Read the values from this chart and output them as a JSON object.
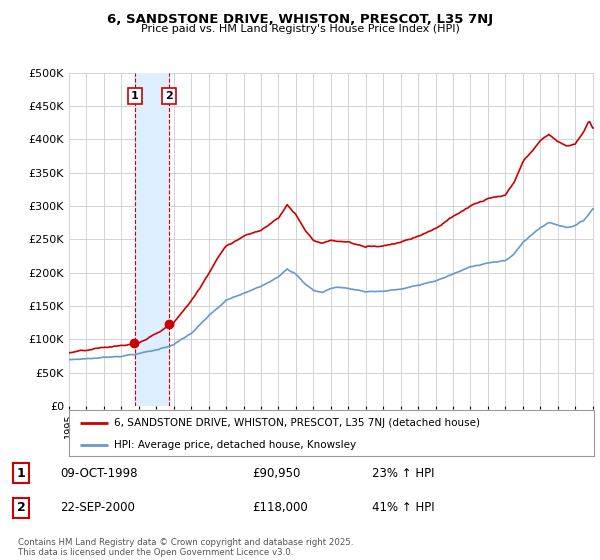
{
  "title_line1": "6, SANDSTONE DRIVE, WHISTON, PRESCOT, L35 7NJ",
  "title_line2": "Price paid vs. HM Land Registry's House Price Index (HPI)",
  "legend_line1": "6, SANDSTONE DRIVE, WHISTON, PRESCOT, L35 7NJ (detached house)",
  "legend_line2": "HPI: Average price, detached house, Knowsley",
  "transaction1_label": "1",
  "transaction1_date": "09-OCT-1998",
  "transaction1_price": "£90,950",
  "transaction1_hpi": "23% ↑ HPI",
  "transaction2_label": "2",
  "transaction2_date": "22-SEP-2000",
  "transaction2_price": "£118,000",
  "transaction2_hpi": "41% ↑ HPI",
  "footer": "Contains HM Land Registry data © Crown copyright and database right 2025.\nThis data is licensed under the Open Government Licence v3.0.",
  "line_color_red": "#cc0000",
  "line_color_blue": "#6699cc",
  "vline_color_pink": "#ffcccc",
  "vline_color_blue": "#ddeeff",
  "ylim": [
    0,
    500000
  ],
  "yticks": [
    0,
    50000,
    100000,
    150000,
    200000,
    250000,
    300000,
    350000,
    400000,
    450000,
    500000
  ],
  "background_color": "#ffffff",
  "grid_color": "#cccccc",
  "t1_year": 1998.78,
  "t2_year": 2000.72,
  "start_year": 1995,
  "end_year": 2025
}
